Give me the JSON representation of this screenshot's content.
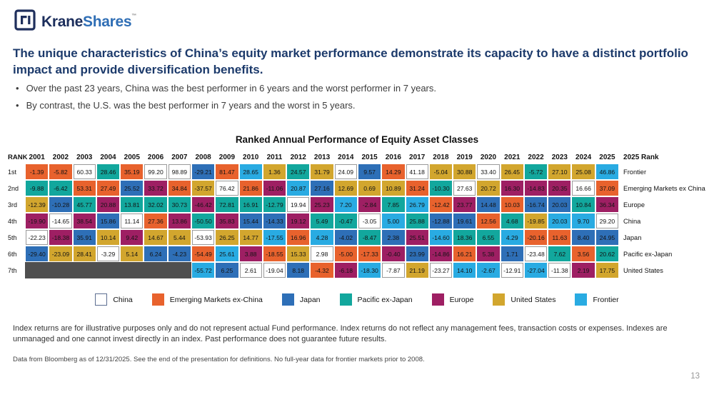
{
  "page": {
    "number": "13"
  },
  "logo": {
    "krane": "Krane",
    "shares": "Shares",
    "tm": "™"
  },
  "heading": {
    "text": "The unique characteristics of China’s equity market performance demonstrate its capacity to have a distinct portfolio impact and provide diversification benefits."
  },
  "bullets": [
    "Over the past 23 years, China was the best performer in 6 years and the worst performer in 7 years.",
    "By contrast, the U.S. was the best performer in 7 years and the worst in 5 years."
  ],
  "chart_data": {
    "type": "table",
    "title": "Ranked Annual Performance of Equity Asset Classes",
    "rank_header": "RANK",
    "final_rank_header": "2025 Rank",
    "years": [
      "2001",
      "2002",
      "2003",
      "2004",
      "2005",
      "2006",
      "2007",
      "2008",
      "2009",
      "2010",
      "2011",
      "2012",
      "2013",
      "2014",
      "2015",
      "2016",
      "2017",
      "2018",
      "2019",
      "2020",
      "2021",
      "2022",
      "2023",
      "2024",
      "2025"
    ],
    "asset_classes": [
      {
        "key": "china",
        "label": "China",
        "color": "#FFFFFF"
      },
      {
        "key": "em",
        "label": "Emerging Markets ex-China",
        "color": "#E8622D"
      },
      {
        "key": "japan",
        "label": "Japan",
        "color": "#2E6FB7"
      },
      {
        "key": "pacific",
        "label": "Pacific ex-Japan",
        "color": "#12A79D"
      },
      {
        "key": "europe",
        "label": "Europe",
        "color": "#9E1F63"
      },
      {
        "key": "us",
        "label": "United States",
        "color": "#D2A62E"
      },
      {
        "key": "frontier",
        "label": "Frontier",
        "color": "#29ABE2"
      }
    ],
    "no_data_color": "#4F4F4F",
    "rows": [
      {
        "rank": "1st",
        "final_label": "Frontier",
        "cells": [
          [
            "em",
            "-1.39"
          ],
          [
            "em",
            "-5.82"
          ],
          [
            "china",
            "60.33"
          ],
          [
            "pacific",
            "28.46"
          ],
          [
            "em",
            "35.19"
          ],
          [
            "china",
            "99.20"
          ],
          [
            "china",
            "98.89"
          ],
          [
            "japan",
            "-29.21"
          ],
          [
            "em",
            "81.47"
          ],
          [
            "frontier",
            "28.65"
          ],
          [
            "us",
            "1.36"
          ],
          [
            "pacific",
            "24.57"
          ],
          [
            "us",
            "31.79"
          ],
          [
            "china",
            "24.09"
          ],
          [
            "japan",
            "9.57"
          ],
          [
            "em",
            "14.29"
          ],
          [
            "china",
            "41.18"
          ],
          [
            "us",
            "-5.04"
          ],
          [
            "us",
            "30.88"
          ],
          [
            "china",
            "33.40"
          ],
          [
            "us",
            "26.45"
          ],
          [
            "pacific",
            "-5.72"
          ],
          [
            "us",
            "27.10"
          ],
          [
            "us",
            "25.08"
          ],
          [
            "frontier",
            "46.86"
          ]
        ]
      },
      {
        "rank": "2nd",
        "final_label": "Emerging Markets ex China",
        "cells": [
          [
            "pacific",
            "-9.88"
          ],
          [
            "pacific",
            "-6.42"
          ],
          [
            "em",
            "53.31"
          ],
          [
            "em",
            "27.49"
          ],
          [
            "japan",
            "25.52"
          ],
          [
            "europe",
            "33.72"
          ],
          [
            "em",
            "34.84"
          ],
          [
            "us",
            "-37.57"
          ],
          [
            "china",
            "76.42"
          ],
          [
            "em",
            "21.86"
          ],
          [
            "europe",
            "-11.06"
          ],
          [
            "frontier",
            "20.87"
          ],
          [
            "japan",
            "27.16"
          ],
          [
            "us",
            "12.69"
          ],
          [
            "us",
            "0.69"
          ],
          [
            "us",
            "10.89"
          ],
          [
            "em",
            "31.24"
          ],
          [
            "pacific",
            "-10.30"
          ],
          [
            "china",
            "27.63"
          ],
          [
            "us",
            "20.72"
          ],
          [
            "europe",
            "16.30"
          ],
          [
            "europe",
            "-14.83"
          ],
          [
            "europe",
            "20.35"
          ],
          [
            "china",
            "16.66"
          ],
          [
            "em",
            "37.09"
          ]
        ]
      },
      {
        "rank": "3rd",
        "final_label": "Europe",
        "cells": [
          [
            "us",
            "-12.39"
          ],
          [
            "japan",
            "-10.28"
          ],
          [
            "pacific",
            "45.77"
          ],
          [
            "europe",
            "20.88"
          ],
          [
            "pacific",
            "13.81"
          ],
          [
            "pacific",
            "32.02"
          ],
          [
            "pacific",
            "30.73"
          ],
          [
            "europe",
            "-46.42"
          ],
          [
            "pacific",
            "72.81"
          ],
          [
            "pacific",
            "16.91"
          ],
          [
            "pacific",
            "-12.79"
          ],
          [
            "china",
            "19.94"
          ],
          [
            "europe",
            "25.23"
          ],
          [
            "frontier",
            "7.20"
          ],
          [
            "europe",
            "-2.84"
          ],
          [
            "pacific",
            "7.85"
          ],
          [
            "frontier",
            "26.79"
          ],
          [
            "em",
            "-12.42"
          ],
          [
            "europe",
            "23.77"
          ],
          [
            "japan",
            "14.48"
          ],
          [
            "em",
            "10.03"
          ],
          [
            "japan",
            "-16.74"
          ],
          [
            "japan",
            "20.03"
          ],
          [
            "pacific",
            "10.84"
          ],
          [
            "europe",
            "36.34"
          ]
        ]
      },
      {
        "rank": "4th",
        "final_label": "China",
        "cells": [
          [
            "europe",
            "-19.90"
          ],
          [
            "china",
            "-14.65"
          ],
          [
            "europe",
            "38.54"
          ],
          [
            "japan",
            "15.86"
          ],
          [
            "china",
            "11.14"
          ],
          [
            "em",
            "27.36"
          ],
          [
            "europe",
            "13.86"
          ],
          [
            "pacific",
            "-50.50"
          ],
          [
            "europe",
            "35.83"
          ],
          [
            "japan",
            "15.44"
          ],
          [
            "japan",
            "-14.33"
          ],
          [
            "europe",
            "19.12"
          ],
          [
            "pacific",
            "5.49"
          ],
          [
            "pacific",
            "-0.47"
          ],
          [
            "china",
            "-3.05"
          ],
          [
            "frontier",
            "5.00"
          ],
          [
            "pacific",
            "25.88"
          ],
          [
            "japan",
            "-12.88"
          ],
          [
            "japan",
            "19.61"
          ],
          [
            "em",
            "12.56"
          ],
          [
            "pacific",
            "4.68"
          ],
          [
            "us",
            "-19.85"
          ],
          [
            "frontier",
            "20.03"
          ],
          [
            "frontier",
            "9.70"
          ],
          [
            "china",
            "29.20"
          ]
        ]
      },
      {
        "rank": "5th",
        "final_label": "Japan",
        "cells": [
          [
            "china",
            "-22.23"
          ],
          [
            "europe",
            "-18.38"
          ],
          [
            "japan",
            "35.91"
          ],
          [
            "us",
            "10.14"
          ],
          [
            "europe",
            "9.42"
          ],
          [
            "us",
            "14.67"
          ],
          [
            "us",
            "5.44"
          ],
          [
            "china",
            "-53.93"
          ],
          [
            "us",
            "26.25"
          ],
          [
            "us",
            "14.77"
          ],
          [
            "frontier",
            "-17.55"
          ],
          [
            "em",
            "16.96"
          ],
          [
            "frontier",
            "4.28"
          ],
          [
            "japan",
            "-4.02"
          ],
          [
            "pacific",
            "-8.47"
          ],
          [
            "japan",
            "2.38"
          ],
          [
            "europe",
            "25.51"
          ],
          [
            "frontier",
            "-14.60"
          ],
          [
            "pacific",
            "18.36"
          ],
          [
            "pacific",
            "6.55"
          ],
          [
            "frontier",
            "4.29"
          ],
          [
            "em",
            "-20.16"
          ],
          [
            "em",
            "11.63"
          ],
          [
            "japan",
            "8.40"
          ],
          [
            "japan",
            "24.95"
          ]
        ]
      },
      {
        "rank": "6th",
        "final_label": "Pacific ex-Japan",
        "cells": [
          [
            "japan",
            "-29.40"
          ],
          [
            "us",
            "-23.09"
          ],
          [
            "us",
            "28.41"
          ],
          [
            "china",
            "-3.29"
          ],
          [
            "us",
            "5.14"
          ],
          [
            "japan",
            "6.24"
          ],
          [
            "japan",
            "-4.23"
          ],
          [
            "em",
            "-54.49"
          ],
          [
            "frontier",
            "25.61"
          ],
          [
            "europe",
            "3.88"
          ],
          [
            "em",
            "-18.55"
          ],
          [
            "us",
            "15.33"
          ],
          [
            "china",
            "2.98"
          ],
          [
            "em",
            "-5.00"
          ],
          [
            "em",
            "-17.33"
          ],
          [
            "europe",
            "-0.40"
          ],
          [
            "japan",
            "23.99"
          ],
          [
            "europe",
            "-14.86"
          ],
          [
            "em",
            "16.21"
          ],
          [
            "europe",
            "5.38"
          ],
          [
            "japan",
            "1.71"
          ],
          [
            "china",
            "-23.48"
          ],
          [
            "pacific",
            "7.62"
          ],
          [
            "em",
            "3.56"
          ],
          [
            "pacific",
            "20.62"
          ]
        ]
      },
      {
        "rank": "7th",
        "final_label": "United States",
        "cells": [
          [
            "none",
            ""
          ],
          [
            "none",
            ""
          ],
          [
            "none",
            ""
          ],
          [
            "none",
            ""
          ],
          [
            "none",
            ""
          ],
          [
            "none",
            ""
          ],
          [
            "none",
            ""
          ],
          [
            "frontier",
            "-55.72"
          ],
          [
            "japan",
            "6.25"
          ],
          [
            "china",
            "2.61"
          ],
          [
            "china",
            "-19.04"
          ],
          [
            "japan",
            "8.18"
          ],
          [
            "em",
            "-4.32"
          ],
          [
            "europe",
            "-6.18"
          ],
          [
            "frontier",
            "-18.30"
          ],
          [
            "china",
            "-7.87"
          ],
          [
            "us",
            "21.19"
          ],
          [
            "china",
            "-23.27"
          ],
          [
            "frontier",
            "14.10"
          ],
          [
            "frontier",
            "-2.67"
          ],
          [
            "china",
            "-12.91"
          ],
          [
            "frontier",
            "-27.04"
          ],
          [
            "china",
            "-11.38"
          ],
          [
            "europe",
            "2.19"
          ],
          [
            "us",
            "17.75"
          ]
        ]
      }
    ]
  },
  "footnotes": {
    "disclaimer": "Index returns are for illustrative purposes only and do not represent actual Fund performance. Index returns do not reflect any management fees, transaction costs or expenses. Indexes are unmanaged and one cannot invest directly in an index. Past performance does not guarantee future results.",
    "source": "Data from Bloomberg as of 12/31/2025. See the end of the presentation for definitions. No full-year data for frontier markets prior to 2008."
  }
}
